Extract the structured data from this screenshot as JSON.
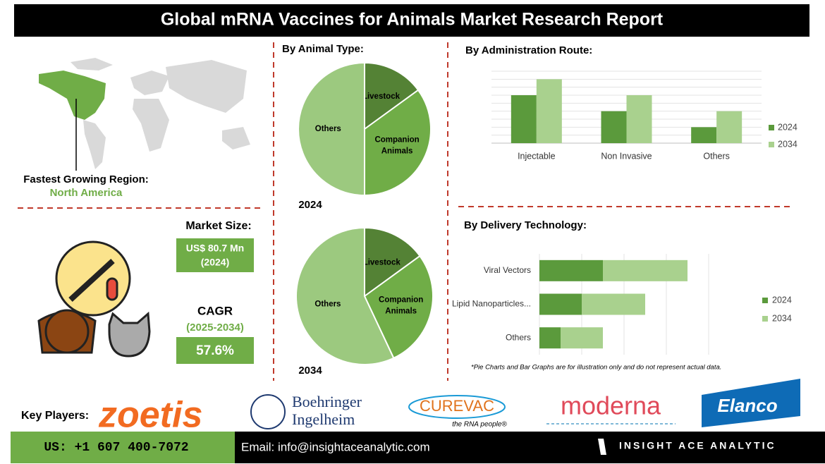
{
  "header": {
    "title": "Global mRNA Vaccines for Animals Market Research Report"
  },
  "region": {
    "label": "Fastest Growing Region:",
    "value": "North America"
  },
  "market_size": {
    "label": "Market Size:",
    "value": "US$ 80.7 Mn",
    "year": "(2024)"
  },
  "cagr": {
    "label": "CAGR",
    "period": "(2025-2034)",
    "value": "57.6%"
  },
  "animal_type_heading": "By Animal Type:",
  "chart_data": [
    {
      "type": "pie",
      "title": "2024",
      "categories": [
        "Livestock",
        "Companion Animals",
        "Others"
      ],
      "values": [
        15,
        35,
        50
      ],
      "colors": [
        "#548235",
        "#70ad47",
        "#9cc97f"
      ]
    },
    {
      "type": "pie",
      "title": "2034",
      "categories": [
        "Livestock",
        "Companion Animals",
        "Others"
      ],
      "values": [
        15,
        28,
        57
      ],
      "colors": [
        "#548235",
        "#70ad47",
        "#9cc97f"
      ]
    },
    {
      "type": "bar",
      "title": "By  Administration Route:",
      "categories": [
        "Injectable",
        "Non Invasive",
        "Others"
      ],
      "ylim": [
        0,
        9
      ],
      "grid": true,
      "series": [
        {
          "name": "2024",
          "color": "#5b9a3c",
          "values": [
            6,
            4,
            2
          ]
        },
        {
          "name": "2034",
          "color": "#a9d18e",
          "values": [
            8,
            6,
            4
          ]
        }
      ]
    },
    {
      "type": "hbar",
      "stacked": true,
      "title": "By Delivery Technology:",
      "categories": [
        "Viral Vectors",
        "Lipid Nanoparticles...",
        "Others"
      ],
      "xlim": [
        0,
        4
      ],
      "grid": true,
      "series": [
        {
          "name": "2024",
          "color": "#5b9a3c",
          "values": [
            1.5,
            1,
            0.5
          ]
        },
        {
          "name": "2034",
          "color": "#a9d18e",
          "values": [
            2,
            1.5,
            1
          ]
        }
      ]
    }
  ],
  "note": "*Pie Charts and Bar Graphs are for illustration only and do not represent actual data.",
  "key_players": {
    "label": "Key Players:",
    "zoetis": "zoetis",
    "boehringer": [
      "Boehringer",
      "Ingelheim"
    ],
    "curevac": "CUREVAC",
    "curevac_tagline": "the RNA people®",
    "moderna": "moderna",
    "elanco": "Elanco"
  },
  "footer": {
    "phone": "US: +1 607 400-7072",
    "email": "Email: info@insightaceanalytic.com",
    "brand": "INSIGHT ACE ANALYTIC"
  }
}
